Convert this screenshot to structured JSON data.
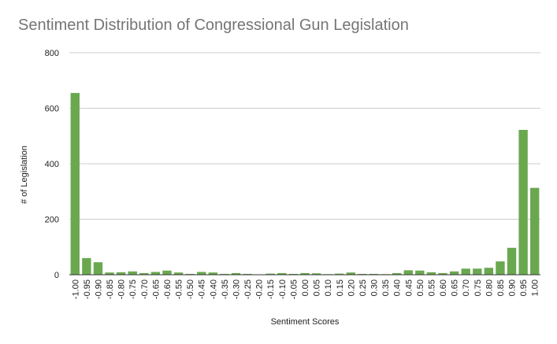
{
  "chart_data": {
    "type": "bar",
    "title": "Sentiment Distribution of Congressional Gun Legislation",
    "xlabel": "Sentiment Scores",
    "ylabel": "# of Legislation",
    "ylim": [
      0,
      800
    ],
    "yticks": [
      "0",
      "200",
      "400",
      "600",
      "800"
    ],
    "grid": true,
    "bar_color": "#6aa84f",
    "categories": [
      "-1.00",
      "-0.95",
      "-0.90",
      "-0.85",
      "-0.80",
      "-0.75",
      "-0.70",
      "-0.65",
      "-0.60",
      "-0.55",
      "-0.50",
      "-0.45",
      "-0.40",
      "-0.35",
      "-0.30",
      "-0.25",
      "-0.20",
      "-0.15",
      "-0.10",
      "-0.05",
      "0.00",
      "0.05",
      "0.10",
      "0.15",
      "0.20",
      "0.25",
      "0.30",
      "0.35",
      "0.40",
      "0.45",
      "0.50",
      "0.55",
      "0.60",
      "0.65",
      "0.70",
      "0.75",
      "0.80",
      "0.85",
      "0.90",
      "0.95",
      "1.00"
    ],
    "values": [
      655,
      60,
      45,
      8,
      9,
      12,
      6,
      10,
      15,
      8,
      3,
      10,
      8,
      3,
      6,
      3,
      1,
      4,
      6,
      3,
      6,
      5,
      2,
      4,
      8,
      3,
      3,
      2,
      6,
      16,
      15,
      9,
      6,
      12,
      22,
      22,
      25,
      48,
      97,
      522,
      313
    ]
  }
}
